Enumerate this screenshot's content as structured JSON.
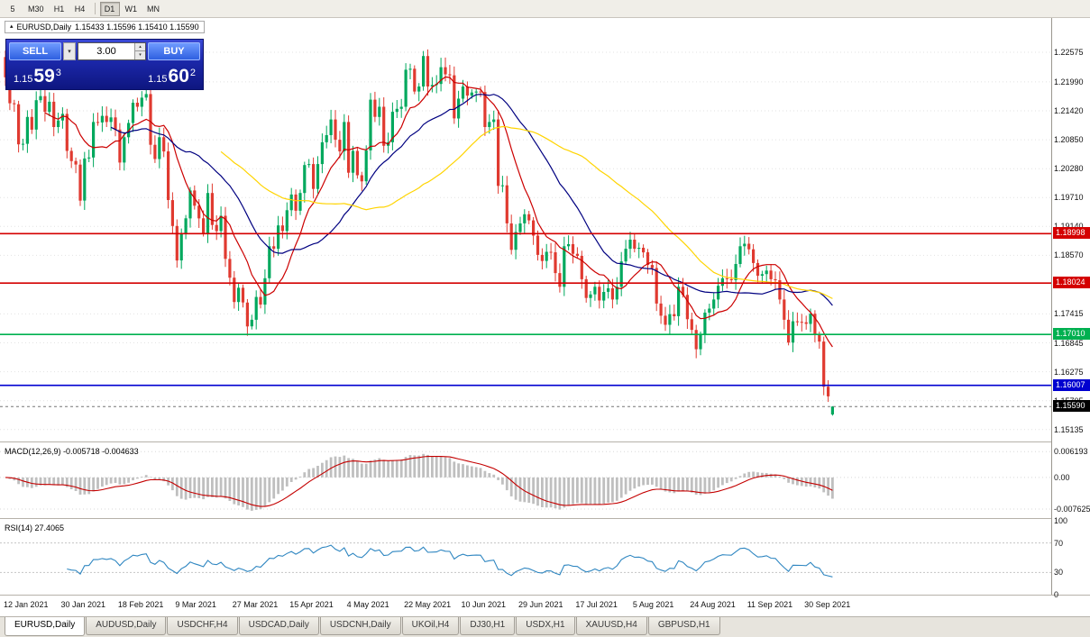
{
  "toolbar": {
    "periods": [
      "5",
      "M30",
      "H1",
      "H4",
      "D1",
      "W1",
      "MN"
    ],
    "active": "D1"
  },
  "chart_header": {
    "symbol": "EURUSD,Daily",
    "ohlc": "1.15433 1.15596 1.15410 1.15590"
  },
  "icons": {
    "collapse_triangle": "▴",
    "dropdown_arrow": "▾",
    "spin_up": "▴",
    "spin_down": "▾"
  },
  "trade_panel": {
    "sell_label": "SELL",
    "buy_label": "BUY",
    "volume_value": "3.00",
    "bid": {
      "prefix": "1.15",
      "big": "59",
      "sup": "3"
    },
    "ask": {
      "prefix": "1.15",
      "big": "60",
      "sup": "2"
    }
  },
  "chart_data": {
    "type": "candlestick",
    "symbol": "EURUSD",
    "timeframe": "Daily",
    "first_open": 1.2248,
    "closes": [
      1.2208,
      1.2157,
      1.2155,
      1.2076,
      1.2077,
      1.213,
      1.2105,
      1.2163,
      1.2171,
      1.214,
      1.216,
      1.211,
      1.2123,
      1.2136,
      1.2063,
      1.2043,
      1.2036,
      1.1965,
      1.2048,
      1.205,
      1.212,
      1.2119,
      1.2132,
      1.212,
      1.2129,
      1.2105,
      1.204,
      1.209,
      1.2118,
      1.2158,
      1.215,
      1.2168,
      1.2175,
      1.2075,
      1.2047,
      1.209,
      1.2062,
      1.1966,
      1.1915,
      1.1847,
      1.19,
      1.193,
      1.1985,
      1.1955,
      1.193,
      1.19,
      1.198,
      1.1917,
      1.1905,
      1.1935,
      1.185,
      1.1813,
      1.1765,
      1.1793,
      1.1764,
      1.1717,
      1.173,
      1.1775,
      1.176,
      1.1812,
      1.1875,
      1.187,
      1.1916,
      1.1905,
      1.1946,
      1.1977,
      1.1945,
      1.198,
      1.2035,
      1.2037,
      1.1988,
      1.2037,
      1.208,
      1.2094,
      1.2125,
      1.2085,
      1.2062,
      1.212,
      1.202,
      1.2063,
      1.2015,
      1.2003,
      1.2064,
      1.2164,
      1.213,
      1.215,
      1.2073,
      1.208,
      1.214,
      1.2146,
      1.215,
      1.2223,
      1.2225,
      1.218,
      1.219,
      1.225,
      1.219,
      1.2193,
      1.2195,
      1.2228,
      1.2214,
      1.2212,
      1.2127,
      1.2166,
      1.219,
      1.2172,
      1.2178,
      1.218,
      1.2179,
      1.211,
      1.212,
      1.2125,
      1.1994,
      1.1995,
      1.192,
      1.1868,
      1.1903,
      1.192,
      1.1938,
      1.1926,
      1.1896,
      1.1858,
      1.1846,
      1.1864,
      1.1863,
      1.1822,
      1.1795,
      1.1875,
      1.1879,
      1.186,
      1.1856,
      1.181,
      1.1773,
      1.178,
      1.1795,
      1.1768,
      1.1785,
      1.1792,
      1.177,
      1.1795,
      1.1845,
      1.187,
      1.1888,
      1.187,
      1.1872,
      1.1863,
      1.1838,
      1.1832,
      1.1762,
      1.1738,
      1.172,
      1.1741,
      1.1737,
      1.1795,
      1.1779,
      1.1731,
      1.171,
      1.1672,
      1.17,
      1.1744,
      1.1752,
      1.177,
      1.1797,
      1.1812,
      1.181,
      1.1808,
      1.184,
      1.1875,
      1.188,
      1.1869,
      1.1842,
      1.1817,
      1.182,
      1.1827,
      1.181,
      1.1808,
      1.177,
      1.173,
      1.1685,
      1.1727,
      1.1726,
      1.1725,
      1.1722,
      1.1742,
      1.17,
      1.1687,
      1.1598,
      1.1579,
      1.1559
    ],
    "current_bar": {
      "open": 1.15433,
      "high": 1.15596,
      "low": 1.1541,
      "close": 1.1559
    },
    "price_range": {
      "max": 1.2325,
      "min": 1.149
    },
    "y_axis_labels": [
      {
        "value": 1.22575,
        "text": "1.22575"
      },
      {
        "value": 1.2199,
        "text": "1.21990"
      },
      {
        "value": 1.2142,
        "text": "1.21420"
      },
      {
        "value": 1.2085,
        "text": "1.20850"
      },
      {
        "value": 1.2028,
        "text": "1.20280"
      },
      {
        "value": 1.1971,
        "text": "1.19710"
      },
      {
        "value": 1.1914,
        "text": "1.19140"
      },
      {
        "value": 1.1857,
        "text": "1.18570"
      },
      {
        "value": 1.17415,
        "text": "1.17415"
      },
      {
        "value": 1.16845,
        "text": "1.16845"
      },
      {
        "value": 1.16275,
        "text": "1.16275"
      },
      {
        "value": 1.15705,
        "text": "1.15705"
      },
      {
        "value": 1.15135,
        "text": "1.15135"
      }
    ],
    "x_labels": [
      {
        "index": 0,
        "text": "12 Jan 2021"
      },
      {
        "index": 13,
        "text": "30 Jan 2021"
      },
      {
        "index": 26,
        "text": "18 Feb 2021"
      },
      {
        "index": 39,
        "text": "9 Mar 2021"
      },
      {
        "index": 52,
        "text": "27 Mar 2021"
      },
      {
        "index": 65,
        "text": "15 Apr 2021"
      },
      {
        "index": 78,
        "text": "4 May 2021"
      },
      {
        "index": 91,
        "text": "22 May 2021"
      },
      {
        "index": 104,
        "text": "10 Jun 2021"
      },
      {
        "index": 117,
        "text": "29 Jun 2021"
      },
      {
        "index": 130,
        "text": "17 Jul 2021"
      },
      {
        "index": 143,
        "text": "5 Aug 2021"
      },
      {
        "index": 156,
        "text": "24 Aug 2021"
      },
      {
        "index": 169,
        "text": "11 Sep 2021"
      },
      {
        "index": 182,
        "text": "30 Sep 2021"
      }
    ],
    "levels": [
      {
        "price": 1.18998,
        "label": "1.18998",
        "color": "#D40000"
      },
      {
        "price": 1.18024,
        "label": "1.18024",
        "color": "#D40000"
      },
      {
        "price": 1.1701,
        "label": "1.17010",
        "color": "#00B050"
      },
      {
        "price": 1.16007,
        "label": "1.16007",
        "color": "#0000D0"
      }
    ],
    "current_price_tag": {
      "price": 1.1559,
      "label": "1.15590",
      "color": "#000000"
    },
    "moving_averages": [
      {
        "period": 10,
        "color": "#CC0000"
      },
      {
        "period": 25,
        "color": "#000080"
      },
      {
        "period": 50,
        "color": "#FFD400"
      }
    ],
    "macd": {
      "label": "MACD(12,26,9)",
      "values_text": "-0.005718 -0.004633",
      "fast": 12,
      "slow": 26,
      "signal_period": 9,
      "range": {
        "max": 0.008,
        "min": -0.0098
      },
      "axis_labels": [
        {
          "value": 0.006193,
          "text": "0.006193"
        },
        {
          "value": 0,
          "text": "0.00"
        },
        {
          "value": -0.007625,
          "text": "-0.007625"
        }
      ]
    },
    "rsi": {
      "label": "RSI(14)",
      "value_text": "27.4065",
      "period": 14,
      "levels": [
        70,
        30
      ],
      "axis_labels": [
        {
          "value": 100,
          "text": "100"
        },
        {
          "value": 70,
          "text": "70"
        },
        {
          "value": 30,
          "text": "30"
        },
        {
          "value": 0,
          "text": "0"
        }
      ]
    },
    "colors": {
      "up": "#00A85D",
      "down": "#E03A30",
      "grid": "#E2E2E2",
      "macd_hist": "#BFBFBF",
      "macd_signal": "#C40000",
      "rsi_line": "#2E86C1"
    }
  },
  "tabs": {
    "items": [
      "EURUSD,Daily",
      "AUDUSD,Daily",
      "USDCHF,H4",
      "USDCAD,Daily",
      "USDCNH,Daily",
      "UKOil,H4",
      "DJ30,H1",
      "USDX,H1",
      "XAUUSD,H4",
      "GBPUSD,H1"
    ],
    "active": "EURUSD,Daily"
  }
}
